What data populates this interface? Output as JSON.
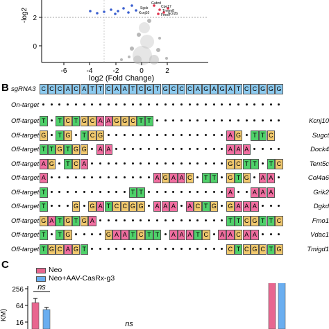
{
  "panel_a": {
    "y_axis_label": "-log2",
    "x_axis_label": "log2 (Fold Change)",
    "x_ticks": [
      "-6",
      "-4",
      "-2",
      "0",
      "2"
    ],
    "y_ticks": [
      "2",
      "0"
    ],
    "highlighted_genes": [
      "Gabrd",
      "Kcnj10",
      "Sgcb",
      "Cpe17",
      "Tmem8",
      "Fmo1",
      "Scn2b"
    ]
  },
  "panel_b": {
    "letter": "B",
    "guide_label": "sgRNA3",
    "guide_seq": "CCCACATTCAATCGTGCCCAGAGATCCGGG",
    "on_target_label": "On-target",
    "rows": [
      {
        "label": "Off-target-1",
        "gene": "Kcnj10",
        "seq": "T.TCTGCAAGGCTT................."
      },
      {
        "label": "Off-target-2",
        "gene": "Sugct",
        "seq": "G.TG.TCG...............AG.TTC"
      },
      {
        "label": "Off-target-3",
        "gene": "Dock4",
        "seq": "TTGTGG.AA..............AAA...."
      },
      {
        "label": "Off-target-4",
        "gene": "Tent5c",
        "seq": "AG.TCA.................GCTT.TC"
      },
      {
        "label": "Off-target-5",
        "gene": "Col4a6",
        "seq": "A.............AGAAC.TT.GTG.AA."
      },
      {
        "label": "Off-target-6",
        "gene": "Grik2",
        "seq": "T..........TT..........A..AAA"
      },
      {
        "label": "Off-target-7",
        "gene": "Dgkd",
        "seq": "T...G.GATCCGG.AAA.ACTG.GAAA..."
      },
      {
        "label": "Off-target-8",
        "gene": "Fmo1",
        "seq": "GATGTGA................TTCGTTCT"
      },
      {
        "label": "Off-target-9",
        "gene": "Vdac1",
        "seq": "T.TG....GAATCTT.AAATC.AACAA..."
      },
      {
        "label": "Off-target-10",
        "gene": "Tmigd1",
        "seq": "TGCAGT.................CTCGCTGA"
      }
    ]
  },
  "panel_c": {
    "letter": "C",
    "legend": [
      {
        "name": "Neo",
        "color": "#e8668f"
      },
      {
        "name": "Neo+AAV-CasRx-g3",
        "color": "#6aaef0"
      }
    ],
    "y_axis_label": "KM)",
    "y_ticks": [
      "256",
      "64",
      "16"
    ],
    "ns_labels": [
      "ns",
      "ns",
      "ns"
    ]
  },
  "colors": {
    "A": "#f06ea0",
    "C": "#f0c86e",
    "G": "#f0c86e",
    "T": "#4fd16a",
    "guide": "#8dcbf0"
  }
}
